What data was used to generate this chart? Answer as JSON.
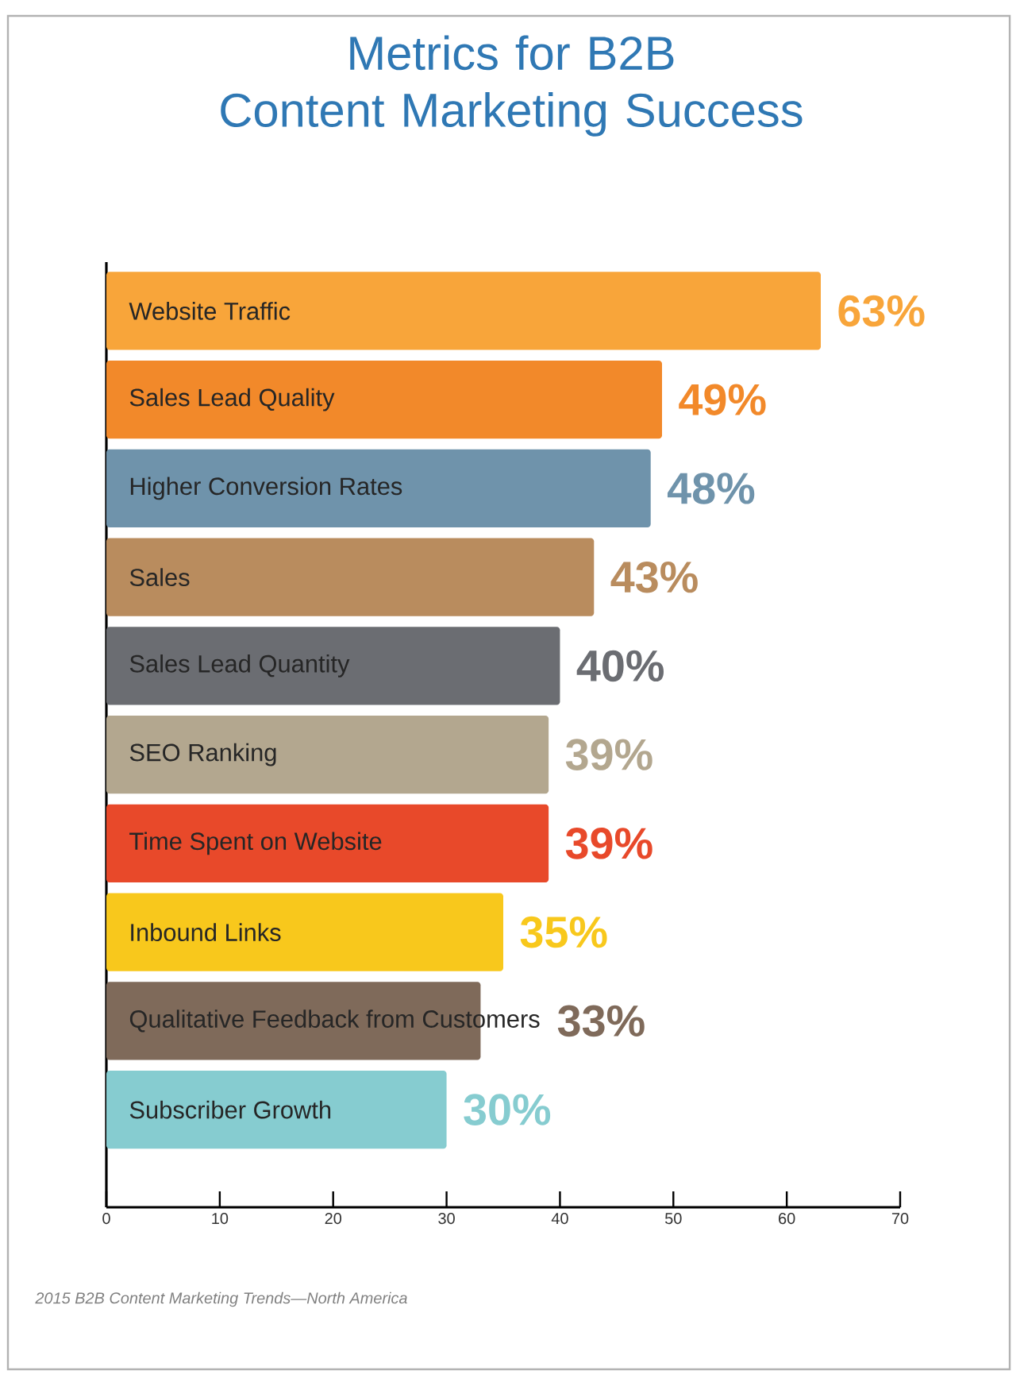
{
  "chart_data": {
    "type": "bar",
    "orientation": "horizontal",
    "title": "Metrics for B2B Content Marketing Success",
    "categories": [
      "Website Traffic",
      "Sales Lead Quality",
      "Higher Conversion Rates",
      "Sales",
      "Sales Lead Quantity",
      "SEO Ranking",
      "Time Spent on Website",
      "Inbound Links",
      "Qualitative Feedback from Customers",
      "Subscriber Growth"
    ],
    "values": [
      63,
      49,
      48,
      43,
      40,
      39,
      39,
      35,
      33,
      30
    ],
    "value_labels": [
      "63%",
      "49%",
      "48%",
      "43%",
      "40%",
      "39%",
      "39%",
      "35%",
      "33%",
      "30%"
    ],
    "colors": [
      "#f8a53a",
      "#f2892a",
      "#6f93ab",
      "#b98c5e",
      "#6b6d72",
      "#b3a78f",
      "#e8492a",
      "#f8c81c",
      "#7f6a5a",
      "#86ccd0"
    ],
    "xlim": [
      0,
      70
    ],
    "xticks": [
      0,
      10,
      20,
      30,
      40,
      50,
      60,
      70
    ],
    "annotations": [
      "2015 B2B Content Marketing Trends—North America"
    ]
  }
}
